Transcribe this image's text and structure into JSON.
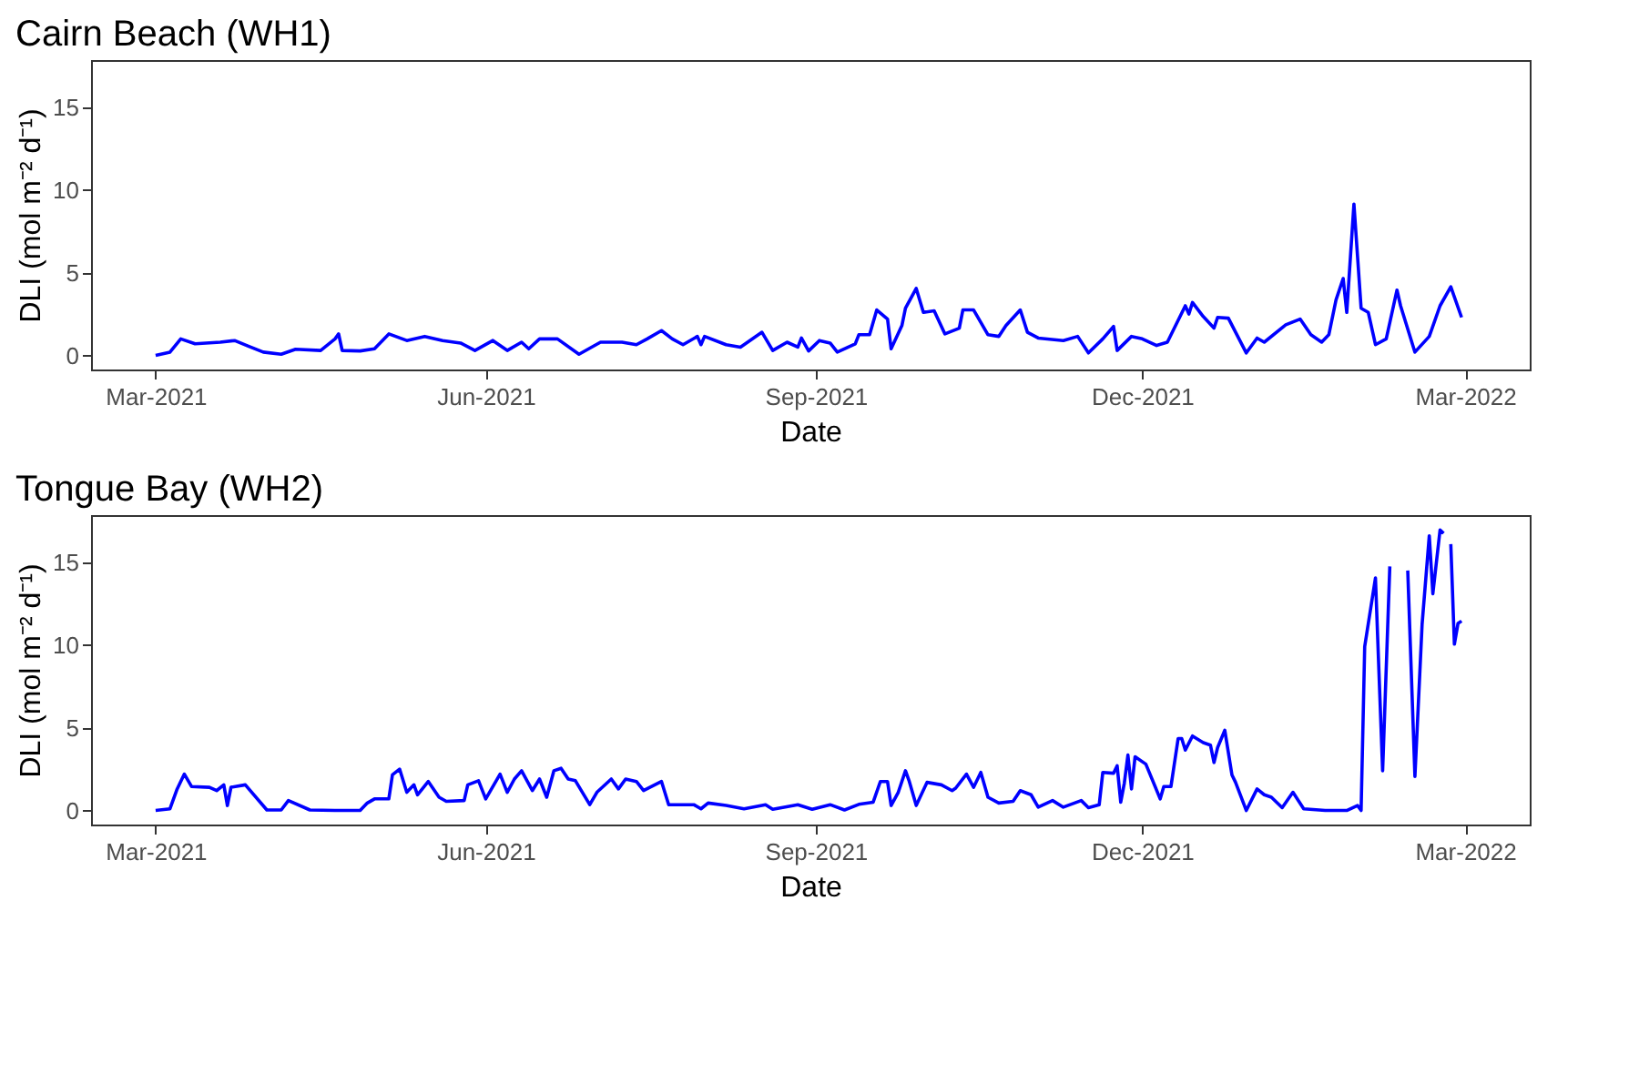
{
  "chart_data": [
    {
      "type": "line",
      "title": "Cairn Beach (WH1)",
      "xlabel": "Date",
      "ylabel": "DLI (mol m⁻² d⁻¹)",
      "grid": false,
      "line_style": "solid",
      "marker": "none",
      "xlim": [
        "2021-02-11",
        "2022-03-19"
      ],
      "ylim": [
        -0.85,
        17.85
      ],
      "yticks": [
        0,
        5,
        10,
        15
      ],
      "xticks": [
        {
          "value": "2021-03-01",
          "label": "Mar-2021"
        },
        {
          "value": "2021-06-01",
          "label": "Jun-2021"
        },
        {
          "value": "2021-09-01",
          "label": "Sep-2021"
        },
        {
          "value": "2021-12-01",
          "label": "Dec-2021"
        },
        {
          "value": "2022-03-01",
          "label": "Mar-2022"
        }
      ],
      "x": [
        "2021-03-01",
        "2021-03-05",
        "2021-03-08",
        "2021-03-12",
        "2021-03-19",
        "2021-03-23",
        "2021-03-27",
        "2021-03-31",
        "2021-04-05",
        "2021-04-09",
        "2021-04-16",
        "2021-04-20",
        "2021-04-21",
        "2021-04-22",
        "2021-04-27",
        "2021-05-01",
        "2021-05-05",
        "2021-05-10",
        "2021-05-15",
        "2021-05-20",
        "2021-05-25",
        "2021-05-29",
        "2021-06-03",
        "2021-06-07",
        "2021-06-11",
        "2021-06-13",
        "2021-06-16",
        "2021-06-21",
        "2021-06-27",
        "2021-07-03",
        "2021-07-09",
        "2021-07-13",
        "2021-07-16",
        "2021-07-20",
        "2021-07-23",
        "2021-07-26",
        "2021-07-30",
        "2021-07-31",
        "2021-08-01",
        "2021-08-07",
        "2021-08-11",
        "2021-08-17",
        "2021-08-20",
        "2021-08-24",
        "2021-08-27",
        "2021-08-28",
        "2021-08-30",
        "2021-09-02",
        "2021-09-05",
        "2021-09-07",
        "2021-09-12",
        "2021-09-13",
        "2021-09-16",
        "2021-09-18",
        "2021-09-21",
        "2021-09-22",
        "2021-09-25",
        "2021-09-26",
        "2021-09-29",
        "2021-10-01",
        "2021-10-04",
        "2021-10-07",
        "2021-10-11",
        "2021-10-12",
        "2021-10-15",
        "2021-10-19",
        "2021-10-22",
        "2021-10-24",
        "2021-10-28",
        "2021-10-30",
        "2021-11-02",
        "2021-11-09",
        "2021-11-13",
        "2021-11-16",
        "2021-11-20",
        "2021-11-23",
        "2021-11-24",
        "2021-11-28",
        "2021-12-01",
        "2021-12-05",
        "2021-12-08",
        "2021-12-13",
        "2021-12-14",
        "2021-12-15",
        "2021-12-18",
        "2021-12-21",
        "2021-12-22",
        "2021-12-25",
        "2021-12-30",
        "2022-01-02",
        "2022-01-04",
        "2022-01-10",
        "2022-01-14",
        "2022-01-17",
        "2022-01-20",
        "2022-01-22",
        "2022-01-24",
        "2022-01-26",
        "2022-01-27",
        "2022-01-29",
        "2022-01-31",
        "2022-02-02",
        "2022-02-04",
        "2022-02-07",
        "2022-02-10",
        "2022-02-11",
        "2022-02-15",
        "2022-02-19",
        "2022-02-22",
        "2022-02-25",
        "2022-02-28"
      ],
      "series": [
        {
          "color": "#0000ff",
          "values": [
            0,
            0.2,
            1.0,
            0.7,
            0.8,
            0.9,
            0.55,
            0.2,
            0.07,
            0.37,
            0.3,
            1.0,
            1.3,
            0.3,
            0.27,
            0.4,
            1.3,
            0.9,
            1.15,
            0.9,
            0.75,
            0.3,
            0.9,
            0.3,
            0.8,
            0.4,
            1.0,
            1.0,
            0.07,
            0.8,
            0.8,
            0.65,
            1.0,
            1.5,
            1.0,
            0.65,
            1.15,
            0.65,
            1.15,
            0.65,
            0.5,
            1.4,
            0.3,
            0.8,
            0.5,
            1.05,
            0.27,
            0.9,
            0.75,
            0.2,
            0.7,
            1.25,
            1.25,
            2.75,
            2.2,
            0.4,
            1.8,
            2.85,
            4.05,
            2.6,
            2.7,
            1.3,
            1.65,
            2.75,
            2.75,
            1.25,
            1.15,
            1.8,
            2.75,
            1.4,
            1.05,
            0.9,
            1.15,
            0.15,
            1.0,
            1.75,
            0.3,
            1.15,
            1.0,
            0.6,
            0.8,
            3.0,
            2.5,
            3.2,
            2.35,
            1.65,
            2.3,
            2.25,
            0.15,
            1.05,
            0.8,
            1.85,
            2.2,
            1.25,
            0.8,
            1.25,
            3.35,
            4.65,
            2.6,
            9.15,
            2.85,
            2.6,
            0.65,
            1.0,
            3.95,
            3.0,
            0.2,
            1.15,
            3.0,
            4.15,
            2.3
          ]
        }
      ]
    },
    {
      "type": "line",
      "title": "Tongue Bay (WH2)",
      "xlabel": "Date",
      "ylabel": "DLI (mol m⁻² d⁻¹)",
      "grid": false,
      "line_style": "solid",
      "marker": "none",
      "xlim": [
        "2021-02-11",
        "2022-03-19"
      ],
      "ylim": [
        -0.85,
        17.85
      ],
      "yticks": [
        0,
        5,
        10,
        15
      ],
      "xticks": [
        {
          "value": "2021-03-01",
          "label": "Mar-2021"
        },
        {
          "value": "2021-06-01",
          "label": "Jun-2021"
        },
        {
          "value": "2021-09-01",
          "label": "Sep-2021"
        },
        {
          "value": "2021-12-01",
          "label": "Dec-2021"
        },
        {
          "value": "2022-03-01",
          "label": "Mar-2022"
        }
      ],
      "x": [
        "2021-03-01",
        "2021-03-05",
        "2021-03-07",
        "2021-03-09",
        "2021-03-11",
        "2021-03-16",
        "2021-03-18",
        "2021-03-20",
        "2021-03-21",
        "2021-03-22",
        "2021-03-26",
        "2021-04-01",
        "2021-04-05",
        "2021-04-07",
        "2021-04-13",
        "2021-04-20",
        "2021-04-27",
        "2021-04-29",
        "2021-05-01",
        "2021-05-05",
        "2021-05-06",
        "2021-05-08",
        "2021-05-10",
        "2021-05-12",
        "2021-05-13",
        "2021-05-16",
        "2021-05-19",
        "2021-05-21",
        "2021-05-26",
        "2021-05-27",
        "2021-05-30",
        "2021-06-01",
        "2021-06-05",
        "2021-06-07",
        "2021-06-09",
        "2021-06-11",
        "2021-06-14",
        "2021-06-16",
        "2021-06-18",
        "2021-06-20",
        "2021-06-22",
        "2021-06-24",
        "2021-06-26",
        "2021-06-30",
        "2021-07-02",
        "2021-07-06",
        "2021-07-08",
        "2021-07-10",
        "2021-07-13",
        "2021-07-15",
        "2021-07-20",
        "2021-07-22",
        "2021-07-29",
        "2021-07-31",
        "2021-08-02",
        "2021-08-07",
        "2021-08-12",
        "2021-08-18",
        "2021-08-20",
        "2021-08-27",
        "2021-08-31",
        "2021-09-05",
        "2021-09-09",
        "2021-09-13",
        "2021-09-17",
        "2021-09-19",
        "2021-09-21",
        "2021-09-22",
        "2021-09-24",
        "2021-09-26",
        "2021-09-27",
        "2021-09-29",
        "2021-10-02",
        "2021-10-06",
        "2021-10-09",
        "2021-10-10",
        "2021-10-13",
        "2021-10-15",
        "2021-10-17",
        "2021-10-19",
        "2021-10-22",
        "2021-10-26",
        "2021-10-28",
        "2021-10-31",
        "2021-11-02",
        "2021-11-06",
        "2021-11-09",
        "2021-11-14",
        "2021-11-16",
        "2021-11-19",
        "2021-11-20",
        "2021-11-23",
        "2021-11-24",
        "2021-11-25",
        "2021-11-26",
        "2021-11-27",
        "2021-11-28",
        "2021-11-29",
        "2021-12-02",
        "2021-12-06",
        "2021-12-07",
        "2021-12-09",
        "2021-12-11",
        "2021-12-12",
        "2021-12-13",
        "2021-12-15",
        "2021-12-18",
        "2021-12-20",
        "2021-12-21",
        "2021-12-22",
        "2021-12-24",
        "2021-12-26",
        "2021-12-27",
        "2021-12-30",
        "2022-01-02",
        "2022-01-04",
        "2022-01-06",
        "2022-01-09",
        "2022-01-12",
        "2022-01-15",
        "2022-01-21",
        "2022-01-27",
        "2022-01-30",
        "2022-01-31",
        "2022-02-01",
        "2022-02-04",
        "2022-02-06",
        "2022-02-08",
        "2022-02-10",
        "2022-02-13",
        "2022-02-15",
        "2022-02-17",
        "2022-02-19",
        "2022-02-20",
        "2022-02-22",
        "2022-02-23",
        "2022-02-24",
        "2022-02-25",
        "2022-02-26",
        "2022-02-27",
        "2022-02-28"
      ],
      "series": [
        {
          "color": "#0000ff",
          "values": [
            0,
            0.1,
            1.3,
            2.2,
            1.45,
            1.4,
            1.2,
            1.55,
            0.3,
            1.4,
            1.55,
            0.03,
            0.03,
            0.6,
            0.03,
            0,
            0,
            0.45,
            0.7,
            0.7,
            2.15,
            2.5,
            1.1,
            1.55,
            0.95,
            1.75,
            0.8,
            0.55,
            0.6,
            1.55,
            1.8,
            0.7,
            2.2,
            1.1,
            1.9,
            2.4,
            1.2,
            1.9,
            0.8,
            2.4,
            2.55,
            1.9,
            1.8,
            0.35,
            1.1,
            1.9,
            1.3,
            1.9,
            1.75,
            1.2,
            1.75,
            0.35,
            0.35,
            0.1,
            0.45,
            0.3,
            0.1,
            0.35,
            0.07,
            0.35,
            0.07,
            0.35,
            0.03,
            0.37,
            0.5,
            1.75,
            1.75,
            0.3,
            1.1,
            2.4,
            1.8,
            0.3,
            1.7,
            1.55,
            1.2,
            1.35,
            2.2,
            1.4,
            2.3,
            0.8,
            0.45,
            0.55,
            1.2,
            0.95,
            0.2,
            0.6,
            0.2,
            0.6,
            0.17,
            0.35,
            2.3,
            2.25,
            2.7,
            0.5,
            1.65,
            3.35,
            1.3,
            3.25,
            2.8,
            0.7,
            1.45,
            1.45,
            4.35,
            4.35,
            3.65,
            4.5,
            4.1,
            3.95,
            2.9,
            3.8,
            4.85,
            2.15,
            1.7,
            0,
            1.3,
            0.95,
            0.8,
            0.17,
            1.1,
            0.1,
            0,
            0,
            0.3,
            0,
            9.9,
            14.05,
            2.4,
            14.75,
            null,
            14.5,
            2.05,
            11.25,
            16.6,
            13.1,
            16.95,
            16.75,
            null,
            16.1,
            10.05,
            11.3,
            11.45
          ]
        }
      ]
    }
  ]
}
